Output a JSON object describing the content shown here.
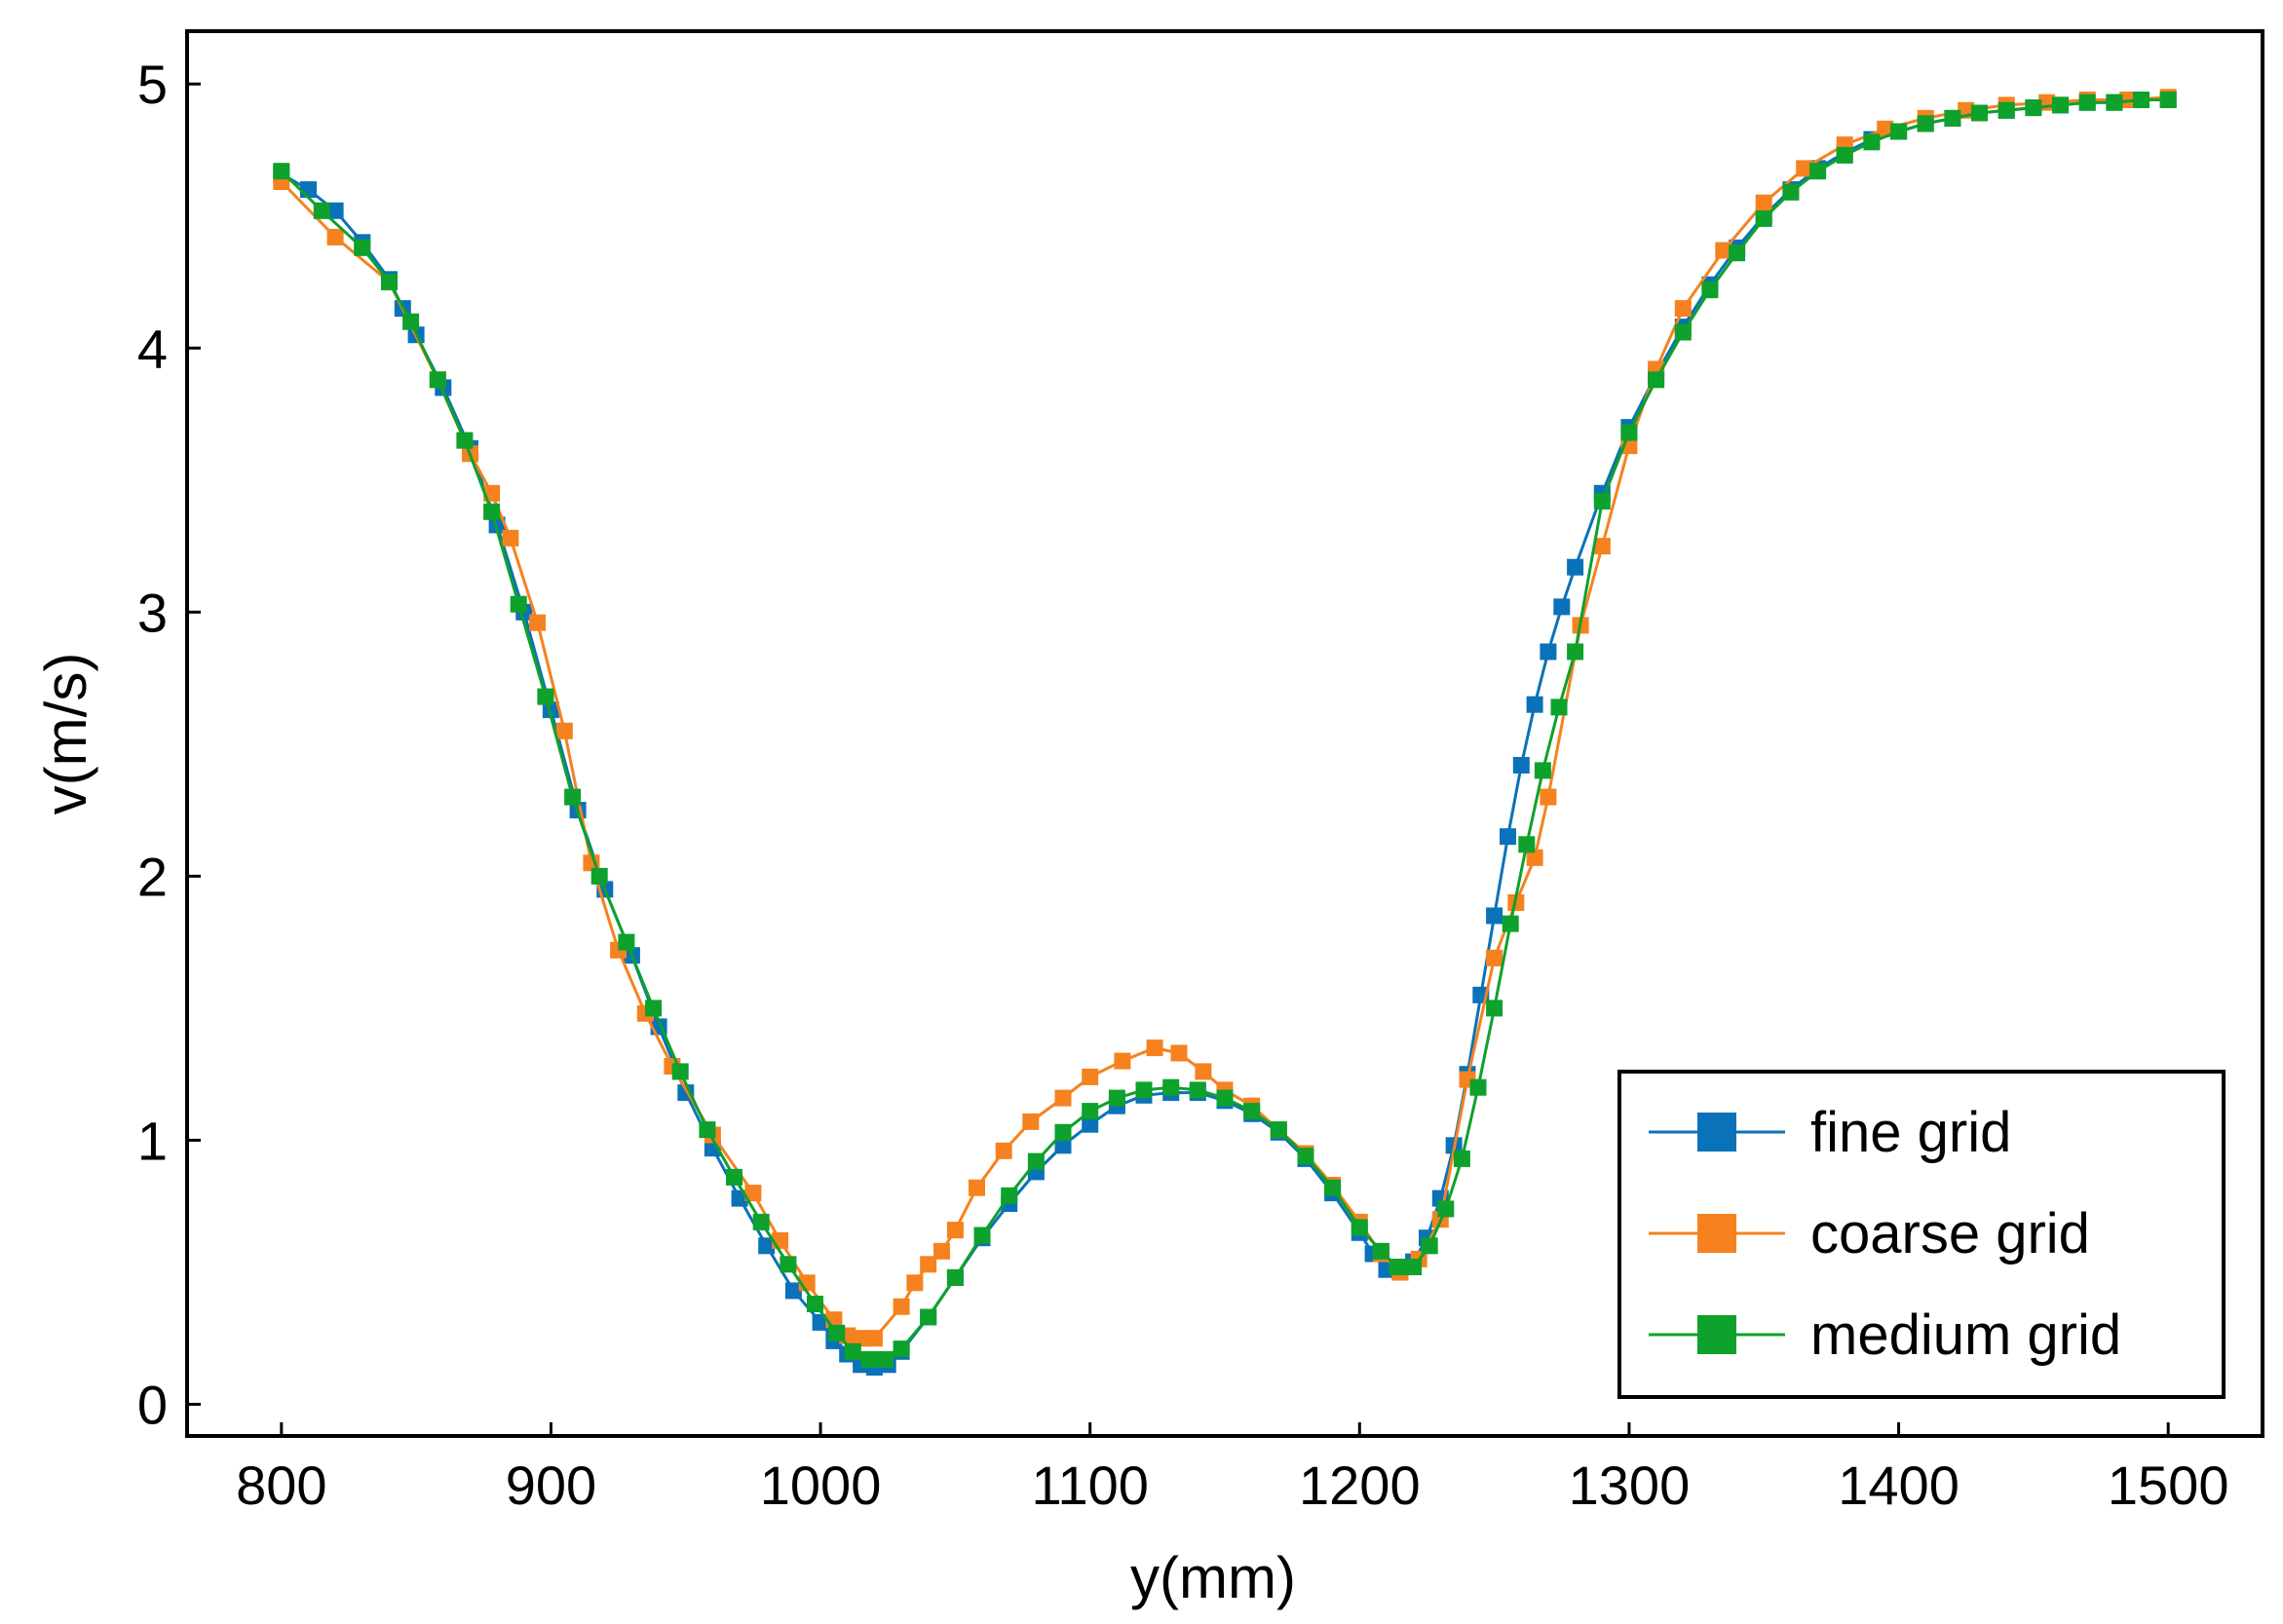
{
  "chart_data": {
    "type": "line",
    "xlabel": "y(mm)",
    "ylabel": "v(m/s)",
    "xlim": [
      765,
      1535
    ],
    "ylim": [
      -0.12,
      5.2
    ],
    "xticks": [
      800,
      900,
      1000,
      1100,
      1200,
      1300,
      1400,
      1500
    ],
    "xtick_labels": [
      "800",
      "900",
      "1000",
      "1100",
      "1200",
      "1300",
      "1400",
      "1500"
    ],
    "yticks": [
      0,
      1,
      2,
      3,
      4,
      5
    ],
    "ytick_labels": [
      "0",
      "1",
      "2",
      "3",
      "4",
      "5"
    ],
    "grid": false,
    "legend_position": "bottom-right",
    "series": [
      {
        "name": "fine grid",
        "color": "#0a72b8",
        "x": [
          800,
          810,
          820,
          830,
          840,
          845,
          850,
          860,
          870,
          880,
          890,
          900,
          910,
          920,
          930,
          940,
          950,
          960,
          970,
          980,
          990,
          1000,
          1005,
          1010,
          1015,
          1020,
          1025,
          1030,
          1040,
          1050,
          1060,
          1070,
          1080,
          1090,
          1100,
          1110,
          1120,
          1130,
          1140,
          1150,
          1160,
          1170,
          1180,
          1190,
          1200,
          1205,
          1210,
          1215,
          1220,
          1225,
          1230,
          1235,
          1240,
          1245,
          1250,
          1255,
          1260,
          1265,
          1270,
          1275,
          1280,
          1290,
          1300,
          1310,
          1320,
          1330,
          1340,
          1350,
          1360,
          1370,
          1380,
          1390,
          1400,
          1410,
          1420,
          1430,
          1440,
          1450,
          1460,
          1470,
          1480,
          1490,
          1500
        ],
        "y": [
          4.66,
          4.6,
          4.52,
          4.4,
          4.26,
          4.15,
          4.05,
          3.85,
          3.62,
          3.33,
          3.0,
          2.63,
          2.25,
          1.95,
          1.7,
          1.43,
          1.18,
          0.97,
          0.78,
          0.6,
          0.43,
          0.31,
          0.24,
          0.19,
          0.15,
          0.14,
          0.15,
          0.2,
          0.33,
          0.48,
          0.63,
          0.76,
          0.88,
          0.98,
          1.06,
          1.13,
          1.17,
          1.18,
          1.18,
          1.15,
          1.1,
          1.03,
          0.93,
          0.8,
          0.65,
          0.57,
          0.51,
          0.5,
          0.54,
          0.63,
          0.78,
          0.98,
          1.25,
          1.55,
          1.85,
          2.15,
          2.42,
          2.65,
          2.85,
          3.02,
          3.17,
          3.45,
          3.7,
          3.9,
          4.08,
          4.24,
          4.38,
          4.5,
          4.6,
          4.68,
          4.74,
          4.79,
          4.82,
          4.85,
          4.87,
          4.89,
          4.9,
          4.91,
          4.92,
          4.93,
          4.93,
          4.94,
          4.94
        ]
      },
      {
        "name": "coarse grid",
        "color": "#f5821f",
        "x": [
          800,
          820,
          840,
          858,
          870,
          878,
          885,
          895,
          905,
          915,
          925,
          935,
          945,
          960,
          975,
          985,
          995,
          1005,
          1010,
          1016,
          1020,
          1030,
          1035,
          1040,
          1045,
          1050,
          1058,
          1068,
          1078,
          1090,
          1100,
          1112,
          1124,
          1133,
          1142,
          1150,
          1160,
          1170,
          1180,
          1190,
          1200,
          1208,
          1215,
          1222,
          1230,
          1240,
          1250,
          1258,
          1265,
          1270,
          1282,
          1290,
          1300,
          1310,
          1320,
          1335,
          1350,
          1365,
          1380,
          1395,
          1410,
          1425,
          1440,
          1455,
          1470,
          1485,
          1500
        ],
        "y": [
          4.63,
          4.42,
          4.25,
          3.88,
          3.6,
          3.45,
          3.28,
          2.96,
          2.55,
          2.05,
          1.72,
          1.48,
          1.28,
          1.02,
          0.8,
          0.62,
          0.46,
          0.32,
          0.26,
          0.25,
          0.25,
          0.37,
          0.46,
          0.53,
          0.58,
          0.66,
          0.82,
          0.96,
          1.07,
          1.16,
          1.24,
          1.3,
          1.35,
          1.33,
          1.26,
          1.19,
          1.13,
          1.04,
          0.95,
          0.83,
          0.69,
          0.57,
          0.5,
          0.55,
          0.7,
          1.23,
          1.69,
          1.9,
          2.07,
          2.3,
          2.95,
          3.25,
          3.63,
          3.92,
          4.15,
          4.37,
          4.55,
          4.68,
          4.77,
          4.83,
          4.87,
          4.9,
          4.92,
          4.93,
          4.94,
          4.94,
          4.95
        ]
      },
      {
        "name": "medium grid",
        "color": "#0ea12c",
        "x": [
          800,
          815,
          830,
          840,
          848,
          858,
          868,
          878,
          888,
          898,
          908,
          918,
          928,
          938,
          948,
          958,
          968,
          978,
          988,
          998,
          1006,
          1012,
          1018,
          1024,
          1030,
          1040,
          1050,
          1060,
          1070,
          1080,
          1090,
          1100,
          1110,
          1120,
          1130,
          1140,
          1150,
          1160,
          1170,
          1180,
          1190,
          1200,
          1208,
          1214,
          1220,
          1226,
          1232,
          1238,
          1244,
          1250,
          1256,
          1262,
          1268,
          1274,
          1280,
          1290,
          1300,
          1310,
          1320,
          1330,
          1340,
          1350,
          1360,
          1370,
          1380,
          1390,
          1400,
          1410,
          1420,
          1430,
          1440,
          1450,
          1460,
          1470,
          1480,
          1490,
          1500
        ],
        "y": [
          4.67,
          4.52,
          4.38,
          4.25,
          4.1,
          3.88,
          3.65,
          3.38,
          3.03,
          2.68,
          2.3,
          2.0,
          1.75,
          1.5,
          1.26,
          1.04,
          0.86,
          0.69,
          0.53,
          0.38,
          0.27,
          0.2,
          0.17,
          0.17,
          0.21,
          0.33,
          0.48,
          0.64,
          0.79,
          0.92,
          1.03,
          1.11,
          1.16,
          1.19,
          1.2,
          1.19,
          1.16,
          1.11,
          1.04,
          0.94,
          0.82,
          0.67,
          0.58,
          0.52,
          0.52,
          0.6,
          0.74,
          0.93,
          1.2,
          1.5,
          1.82,
          2.12,
          2.4,
          2.64,
          2.85,
          3.42,
          3.68,
          3.88,
          4.06,
          4.22,
          4.36,
          4.49,
          4.59,
          4.67,
          4.73,
          4.78,
          4.82,
          4.85,
          4.87,
          4.89,
          4.9,
          4.91,
          4.92,
          4.93,
          4.93,
          4.94,
          4.94
        ]
      }
    ]
  }
}
